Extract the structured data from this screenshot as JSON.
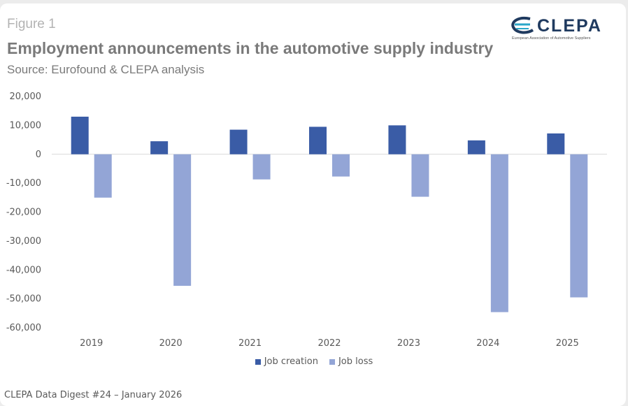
{
  "figure_label": "Figure 1",
  "title": "Employment announcements in the automotive supply industry",
  "subtitle": "Source: Eurofound & CLEPA analysis",
  "logo": {
    "name": "CLEPA",
    "tagline": "European Association of Automotive Suppliers",
    "color": "#1f3a5f"
  },
  "footer": "CLEPA Data Digest #24 – January 2026",
  "chart_data": {
    "type": "bar",
    "title": "Employment announcements in the automotive supply industry",
    "subtitle": "Source: Eurofound & CLEPA analysis",
    "xlabel": "",
    "ylabel": "",
    "categories": [
      "2019",
      "2020",
      "2021",
      "2022",
      "2023",
      "2024",
      "2025"
    ],
    "series": [
      {
        "name": "Job creation",
        "color": "#3a5ca6",
        "values": [
          13000,
          4500,
          8500,
          9500,
          10000,
          4800,
          7200
        ]
      },
      {
        "name": "Job loss",
        "color": "#93a5d6",
        "values": [
          -15000,
          -45500,
          -8700,
          -7700,
          -14700,
          -54600,
          -49500
        ]
      }
    ],
    "ylim": [
      -60000,
      20000
    ],
    "yticks": [
      20000,
      10000,
      0,
      -10000,
      -20000,
      -30000,
      -40000,
      -50000,
      -60000
    ],
    "ytick_labels": [
      "20,000",
      "10,000",
      "0",
      "-10,000",
      "-20,000",
      "-30,000",
      "-40,000",
      "-50,000",
      "-60,000"
    ],
    "grid": false,
    "legend_position": "bottom"
  }
}
